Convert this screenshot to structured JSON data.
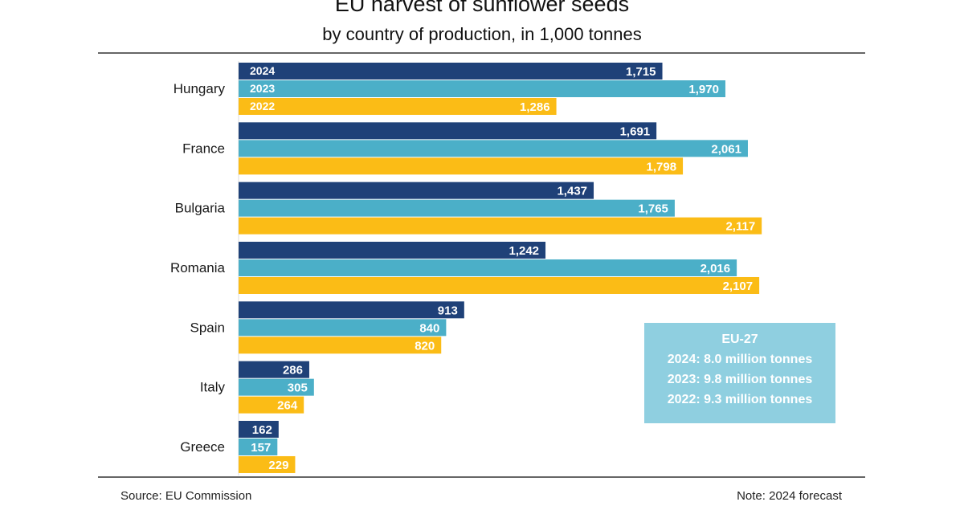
{
  "chart_data": {
    "type": "bar",
    "orientation": "horizontal",
    "title": "EU harvest of sunflower seeds",
    "subtitle": "by country of production, in 1,000 tonnes",
    "categories": [
      "Hungary",
      "France",
      "Bulgaria",
      "Romania",
      "Spain",
      "Italy",
      "Greece"
    ],
    "series": [
      {
        "name": "2024",
        "color": "#1f4178",
        "values": [
          1715,
          1691,
          1437,
          1242,
          913,
          286,
          162
        ]
      },
      {
        "name": "2023",
        "color": "#4bafc8",
        "values": [
          1970,
          2061,
          1765,
          2016,
          840,
          305,
          157
        ]
      },
      {
        "name": "2022",
        "color": "#fbbc16",
        "values": [
          1286,
          1798,
          2117,
          2107,
          820,
          264,
          229
        ]
      }
    ],
    "value_labels": [
      [
        "1,715",
        "1,691",
        "1,437",
        "1,242",
        "913",
        "286",
        "162"
      ],
      [
        "1,970",
        "2,061",
        "1,765",
        "2,016",
        "840",
        "305",
        "157"
      ],
      [
        "1,286",
        "1,798",
        "2,117",
        "2,107",
        "820",
        "264",
        "229"
      ]
    ],
    "legend_placement": "inside-first-bars",
    "xlim": [
      0,
      2300
    ]
  },
  "callout": {
    "heading": "EU-27",
    "lines": [
      "2024: 8.0 million tonnes",
      "2023: 9.8 million tonnes",
      "2022: 9.3 million tonnes"
    ],
    "color": "#8fcfe0"
  },
  "footer": {
    "source": "Source: EU Commission",
    "note": "Note:  2024 forecast"
  },
  "colors": {
    "rule": "#333333",
    "label_text": "#ffffff"
  }
}
